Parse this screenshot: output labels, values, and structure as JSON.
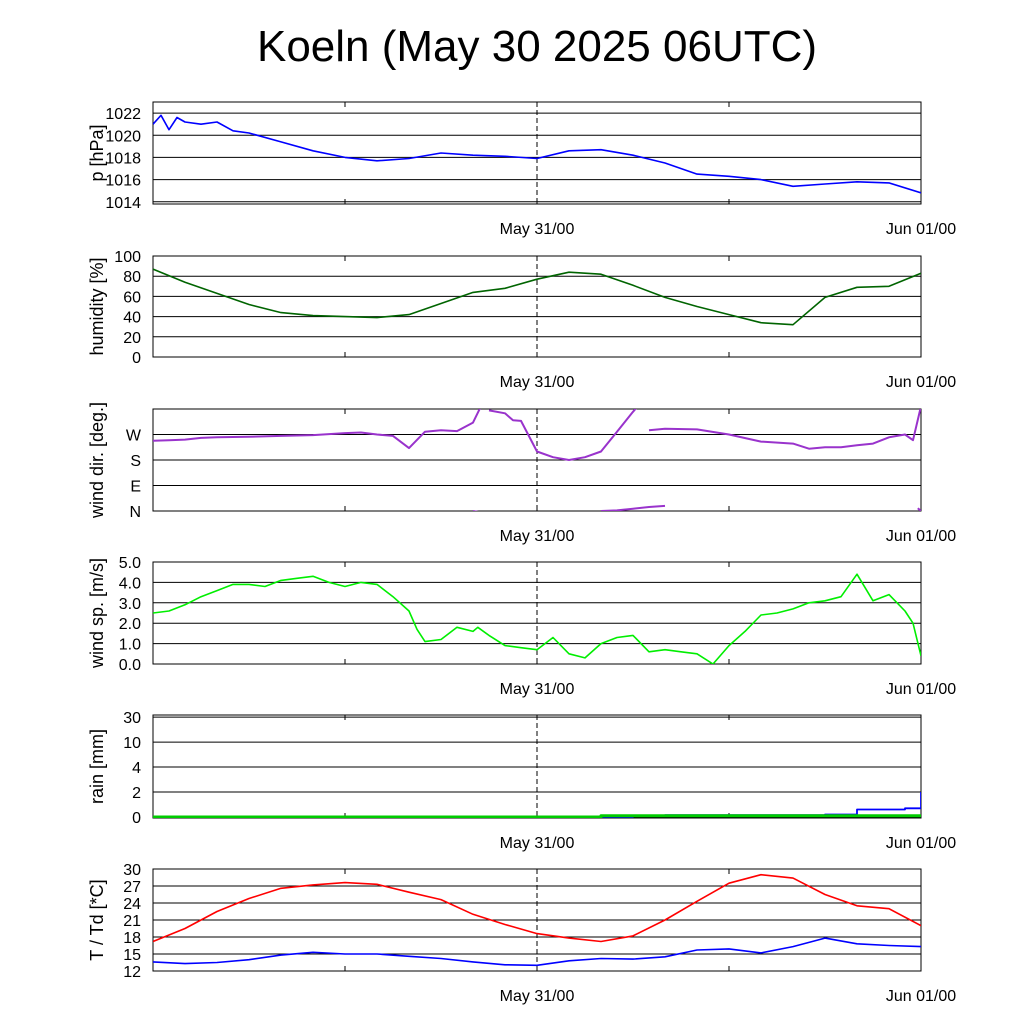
{
  "title": "Koeln (May 30 2025 06UTC)",
  "x_tick_labels": [
    "May 31/00",
    "Jun 01/00"
  ],
  "chart_data": [
    {
      "id": "pressure",
      "type": "line",
      "ylabel": "p [hPa]",
      "ylim": [
        1013.8,
        1023.0
      ],
      "yticks": [
        1014,
        1016,
        1018,
        1020,
        1022
      ],
      "ytick_labels": [
        "1014",
        "1016",
        "1018",
        "1020",
        "1022"
      ],
      "grid": true,
      "color": "#0000ff",
      "x_hours": [
        0,
        0.5,
        1,
        1.5,
        2,
        3,
        4,
        5,
        6,
        8,
        10,
        12,
        14,
        16,
        18,
        20,
        22,
        24,
        26,
        28,
        30,
        32,
        34,
        36,
        38,
        40,
        42,
        44,
        46,
        48
      ],
      "values": [
        1021.0,
        1021.8,
        1020.5,
        1021.6,
        1021.2,
        1021.0,
        1021.2,
        1020.4,
        1020.2,
        1019.4,
        1018.6,
        1018.0,
        1017.7,
        1017.9,
        1018.4,
        1018.2,
        1018.1,
        1017.9,
        1018.6,
        1018.7,
        1018.2,
        1017.5,
        1016.5,
        1016.3,
        1016.0,
        1015.4,
        1015.6,
        1015.8,
        1015.7,
        1014.8
      ]
    },
    {
      "id": "humidity",
      "type": "line",
      "ylabel": "humidity [%]",
      "ylim": [
        0,
        100
      ],
      "yticks": [
        0,
        20,
        40,
        60,
        80,
        100
      ],
      "ytick_labels": [
        "0",
        "20",
        "40",
        "60",
        "80",
        "100"
      ],
      "grid": true,
      "color": "#006400",
      "x_hours": [
        0,
        2,
        4,
        6,
        8,
        10,
        12,
        14,
        16,
        18,
        20,
        22,
        24,
        26,
        28,
        30,
        32,
        34,
        36,
        38,
        40,
        42,
        44,
        46,
        48
      ],
      "values": [
        87,
        74,
        63,
        52,
        44,
        41,
        40,
        39,
        42,
        53,
        64,
        68,
        77,
        84,
        82,
        71,
        59,
        50,
        42,
        34,
        32,
        59,
        69,
        70,
        83
      ]
    },
    {
      "id": "wind_dir",
      "type": "scatter",
      "ylabel": "wind dir. [deg.]",
      "ylim": [
        0,
        360
      ],
      "yticks": [
        0,
        90,
        180,
        270
      ],
      "ytick_labels": [
        "N",
        "E",
        "S",
        "W"
      ],
      "grid": true,
      "color": "#9933cc",
      "x_hours": [
        0,
        1,
        2,
        3,
        4,
        6,
        8,
        10,
        12,
        13,
        14,
        15,
        16,
        17,
        18,
        19,
        20,
        20.5,
        21,
        22,
        22.5,
        23,
        24,
        25,
        26,
        27,
        28,
        29,
        30,
        30.3,
        31,
        32,
        34,
        36,
        38,
        40,
        41,
        42,
        43,
        44,
        45,
        46,
        47,
        47.5,
        48
      ],
      "values": [
        248,
        250,
        252,
        258,
        260,
        262,
        265,
        268,
        275,
        277,
        270,
        265,
        222,
        280,
        285,
        282,
        312,
        370,
        355,
        345,
        320,
        318,
        210,
        190,
        180,
        190,
        210,
        280,
        350,
        370,
        285,
        290,
        288,
        270,
        245,
        238,
        220,
        225,
        225,
        232,
        238,
        260,
        270,
        250,
        370
      ]
    },
    {
      "id": "wind_dir_low",
      "type": "scatter",
      "ylabel": "",
      "color": "#9933cc",
      "x_hours": [
        20,
        21,
        28,
        29,
        30,
        31,
        32,
        47.8,
        48
      ],
      "values": [
        0,
        -10,
        0,
        2,
        8,
        14,
        18,
        10,
        0
      ]
    },
    {
      "id": "wind_speed",
      "type": "line",
      "ylabel": "wind sp. [m/s]",
      "ylim": [
        0,
        5
      ],
      "yticks": [
        0,
        1,
        2,
        3,
        4,
        5
      ],
      "ytick_labels": [
        "0.0",
        "1.0",
        "2.0",
        "3.0",
        "4.0",
        "5.0"
      ],
      "grid": true,
      "color": "#00ee00",
      "x_hours": [
        0,
        1,
        2,
        3,
        4,
        5,
        6,
        7,
        8,
        9,
        10,
        11,
        12,
        13,
        14,
        15,
        16,
        16.5,
        17,
        18,
        19,
        20,
        20.3,
        21,
        22,
        23,
        24,
        25,
        26,
        27,
        28,
        29,
        30,
        31,
        32,
        33,
        34,
        35,
        36,
        37,
        38,
        39,
        40,
        41,
        42,
        43,
        44,
        45,
        46,
        47,
        47.5,
        48
      ],
      "values": [
        2.5,
        2.6,
        2.9,
        3.3,
        3.6,
        3.9,
        3.9,
        3.8,
        4.1,
        4.2,
        4.3,
        4.0,
        3.8,
        4.0,
        3.9,
        3.3,
        2.6,
        1.7,
        1.1,
        1.2,
        1.8,
        1.6,
        1.8,
        1.4,
        0.9,
        0.8,
        0.7,
        1.3,
        0.5,
        0.3,
        1.0,
        1.3,
        1.4,
        0.6,
        0.7,
        0.6,
        0.5,
        0.0,
        0.9,
        1.6,
        2.4,
        2.5,
        2.7,
        3.0,
        3.1,
        3.3,
        4.4,
        3.1,
        3.4,
        2.6,
        2.0,
        0.4
      ]
    },
    {
      "id": "rain",
      "type": "area",
      "ylabel": "rain [mm]",
      "ylim": [
        0,
        30
      ],
      "yticks": [
        0,
        2,
        4,
        10,
        30
      ],
      "ytick_labels": [
        "0",
        "2",
        "4",
        "10",
        "30"
      ],
      "scale": "nonlinear",
      "grid": true,
      "series": [
        {
          "color": "#0000ff",
          "x_hours": [
            0,
            24,
            30,
            32,
            40,
            42,
            43,
            44,
            46,
            47,
            48
          ],
          "values": [
            0,
            0,
            0.1,
            0.15,
            0.15,
            0.2,
            0.2,
            0.6,
            0.6,
            0.7,
            2.0
          ]
        },
        {
          "color": "#00cc00",
          "x_hours": [
            0,
            25,
            28,
            32,
            42,
            48
          ],
          "values": [
            0,
            0,
            0.1,
            0.1,
            0.1,
            0.1
          ]
        }
      ]
    },
    {
      "id": "temperature",
      "type": "line",
      "ylabel": "T / Td [*C]",
      "ylim": [
        12,
        30
      ],
      "yticks": [
        12,
        15,
        18,
        21,
        24,
        27,
        30
      ],
      "ytick_labels": [
        "12",
        "15",
        "18",
        "21",
        "24",
        "27",
        "30"
      ],
      "grid": true,
      "series": [
        {
          "color": "#ff0000",
          "x_hours": [
            0,
            2,
            4,
            6,
            8,
            10,
            12,
            14,
            16,
            18,
            20,
            22,
            24,
            26,
            28,
            30,
            32,
            34,
            36,
            38,
            40,
            42,
            44,
            46,
            48
          ],
          "values": [
            17.2,
            19.5,
            22.5,
            24.8,
            26.6,
            27.2,
            27.6,
            27.3,
            25.9,
            24.6,
            22.0,
            20.2,
            18.6,
            17.8,
            17.2,
            18.2,
            21.0,
            24.3,
            27.5,
            29.0,
            28.4,
            25.5,
            23.5,
            23.0,
            20.0
          ]
        },
        {
          "color": "#0000ff",
          "x_hours": [
            0,
            2,
            4,
            6,
            8,
            10,
            12,
            14,
            16,
            18,
            20,
            22,
            24,
            26,
            28,
            30,
            32,
            34,
            36,
            38,
            40,
            42,
            44,
            46,
            48
          ],
          "values": [
            13.6,
            13.3,
            13.5,
            14.0,
            14.8,
            15.3,
            15.0,
            15.0,
            14.6,
            14.2,
            13.6,
            13.1,
            13.0,
            13.8,
            14.2,
            14.1,
            14.5,
            15.7,
            15.9,
            15.2,
            16.3,
            17.8,
            16.8,
            16.5,
            16.3
          ]
        }
      ]
    }
  ]
}
